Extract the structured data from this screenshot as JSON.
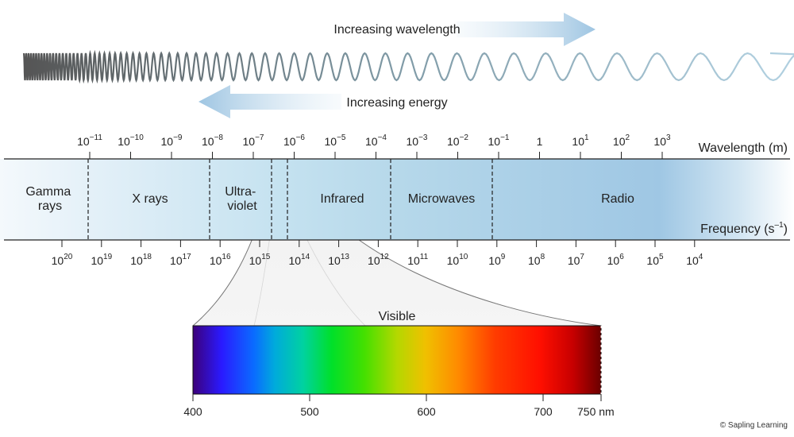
{
  "wave_labels": {
    "wavelength_arrow": "Increasing wavelength",
    "energy_arrow": "Increasing energy"
  },
  "axes": {
    "wavelength_title": "Wavelength (m)",
    "frequency_title": "Frequency (s",
    "frequency_exp": "–1",
    "frequency_close": ")"
  },
  "wavelength_ticks": [
    {
      "base": "10",
      "exp": "−11"
    },
    {
      "base": "10",
      "exp": "−10"
    },
    {
      "base": "10",
      "exp": "−9"
    },
    {
      "base": "10",
      "exp": "−8"
    },
    {
      "base": "10",
      "exp": "−7"
    },
    {
      "base": "10",
      "exp": "−6"
    },
    {
      "base": "10",
      "exp": "−5"
    },
    {
      "base": "10",
      "exp": "−4"
    },
    {
      "base": "10",
      "exp": "−3"
    },
    {
      "base": "10",
      "exp": "−2"
    },
    {
      "base": "10",
      "exp": "−1"
    },
    {
      "base": "1",
      "exp": ""
    },
    {
      "base": "10",
      "exp": "1"
    },
    {
      "base": "10",
      "exp": "2"
    },
    {
      "base": "10",
      "exp": "3"
    }
  ],
  "frequency_ticks": [
    {
      "base": "10",
      "exp": "20"
    },
    {
      "base": "10",
      "exp": "19"
    },
    {
      "base": "10",
      "exp": "18"
    },
    {
      "base": "10",
      "exp": "17"
    },
    {
      "base": "10",
      "exp": "16"
    },
    {
      "base": "10",
      "exp": "15"
    },
    {
      "base": "10",
      "exp": "14"
    },
    {
      "base": "10",
      "exp": "13"
    },
    {
      "base": "10",
      "exp": "12"
    },
    {
      "base": "10",
      "exp": "11"
    },
    {
      "base": "10",
      "exp": "10"
    },
    {
      "base": "10",
      "exp": "9"
    },
    {
      "base": "10",
      "exp": "8"
    },
    {
      "base": "10",
      "exp": "7"
    },
    {
      "base": "10",
      "exp": "6"
    },
    {
      "base": "10",
      "exp": "5"
    },
    {
      "base": "10",
      "exp": "4"
    }
  ],
  "regions": [
    {
      "line1": "Gamma",
      "line2": "rays"
    },
    {
      "line1": "X rays",
      "line2": ""
    },
    {
      "line1": "Ultra-",
      "line2": "violet"
    },
    {
      "line1": "Infrared",
      "line2": ""
    },
    {
      "line1": "Microwaves",
      "line2": ""
    },
    {
      "line1": "Radio",
      "line2": ""
    }
  ],
  "visible": {
    "title": "Visible",
    "ticks": [
      "400",
      "500",
      "600",
      "700",
      "750 nm"
    ]
  },
  "copyright": "© Sapling Learning"
}
